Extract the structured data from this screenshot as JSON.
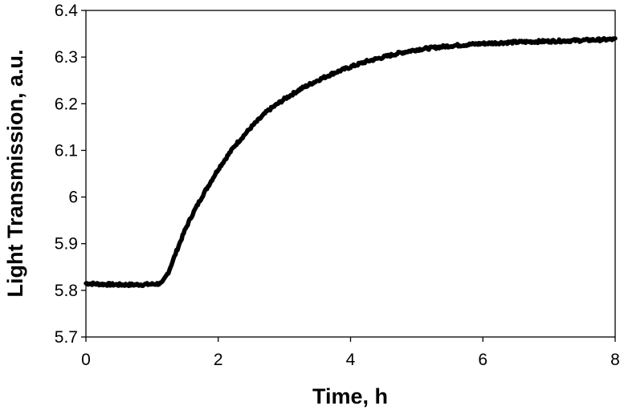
{
  "chart_data": {
    "type": "line",
    "title": "",
    "xlabel": "Time, h",
    "ylabel": "Light Transmission, a.u.",
    "xlim": [
      0,
      8
    ],
    "ylim": [
      5.7,
      6.4
    ],
    "x_ticks": [
      0,
      2,
      4,
      6,
      8
    ],
    "y_ticks": [
      5.7,
      5.8,
      5.9,
      6.0,
      6.1,
      6.2,
      6.3,
      6.4
    ],
    "x_tick_labels": [
      "0",
      "2",
      "4",
      "6",
      "8"
    ],
    "y_tick_labels": [
      "5.7",
      "5.8",
      "5.9",
      "6",
      "6.1",
      "6.2",
      "6.3",
      "6.4"
    ],
    "grid": false,
    "legend": "none",
    "line_color": "#000000",
    "series": [
      {
        "x": [
          0,
          0.25,
          0.5,
          0.75,
          1.0,
          1.15,
          1.25,
          1.4,
          1.5,
          1.6,
          1.75,
          2.0,
          2.25,
          2.5,
          2.75,
          3.0,
          3.25,
          3.5,
          3.75,
          4.0,
          4.25,
          4.5,
          4.75,
          5.0,
          5.5,
          6.0,
          6.5,
          7.0,
          7.5,
          8.0
        ],
        "values": [
          5.815,
          5.813,
          5.812,
          5.812,
          5.813,
          5.815,
          5.84,
          5.895,
          5.93,
          5.96,
          6.0,
          6.06,
          6.11,
          6.15,
          6.185,
          6.21,
          6.232,
          6.25,
          6.266,
          6.279,
          6.291,
          6.3,
          6.309,
          6.316,
          6.324,
          6.329,
          6.332,
          6.334,
          6.336,
          6.338
        ]
      }
    ]
  }
}
